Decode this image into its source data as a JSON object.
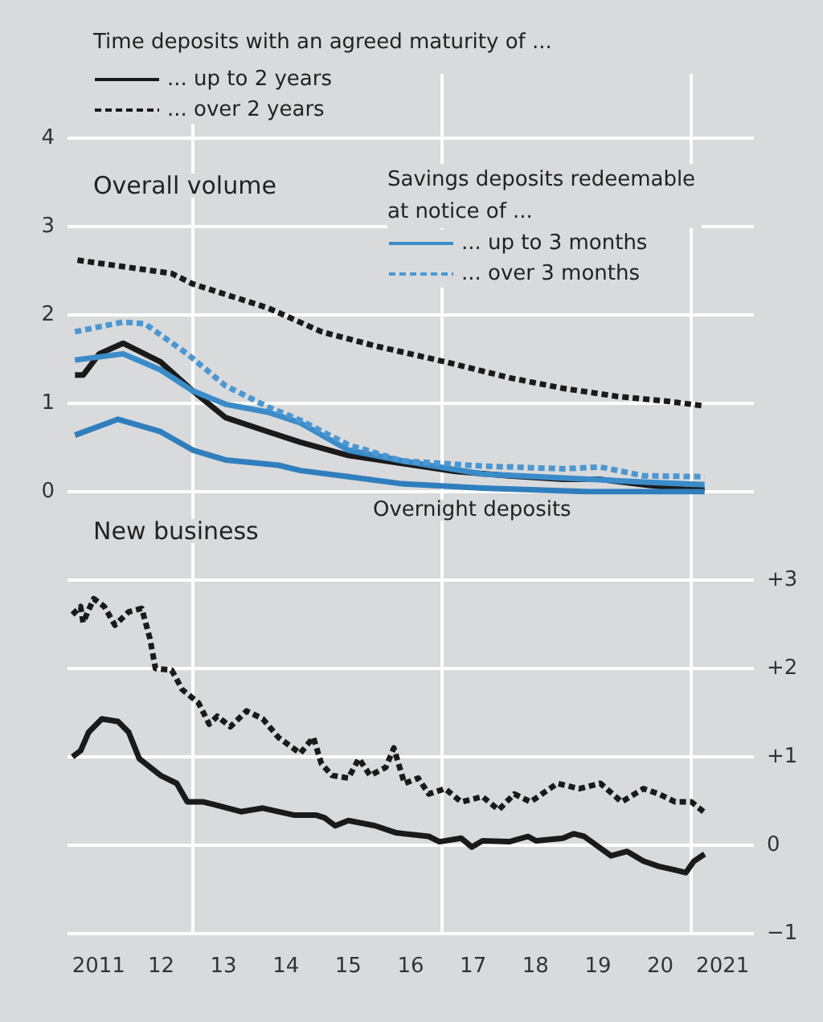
{
  "chart_data": [
    {
      "type": "line",
      "title": "Overall volume",
      "legend_title": "Time deposits with an agreed maturity of ...",
      "annotations": [
        "Savings deposits redeemable at notice of ..."
      ],
      "legend": "top",
      "grid": true,
      "tick_labels": "y",
      "xlim": [
        2010.5,
        2021.5
      ],
      "xticks": [
        {
          "value": 2012.5,
          "label": null
        },
        {
          "value": 2016.5,
          "label": null
        },
        {
          "value": 2020.5,
          "label": null
        }
      ],
      "ylim": [
        0,
        4
      ],
      "yticks": [
        0,
        1,
        2,
        3,
        4
      ],
      "series": [
        {
          "name": "... up to 2 years",
          "color": "#1a1a1a",
          "line_style": "solid",
          "x": [
            2010.62,
            2010.75,
            2011.01,
            2011.39,
            2011.99,
            2012.51,
            2013.03,
            2013.71,
            2014.23,
            2015.0,
            2015.86,
            2016.72,
            2017.58,
            2018.44,
            2019.04,
            2019.73,
            2020.5,
            2020.71
          ],
          "values": [
            1.32,
            1.32,
            1.56,
            1.68,
            1.47,
            1.14,
            0.84,
            0.68,
            0.56,
            0.41,
            0.32,
            0.23,
            0.18,
            0.14,
            0.14,
            0.08,
            0.02,
            0.04
          ]
        },
        {
          "name": "... over 2 years",
          "color": "#1a1a1a",
          "line_style": "dashed",
          "x": [
            2010.66,
            2012.17,
            2012.51,
            2013.71,
            2014.57,
            2015.43,
            2016.55,
            2017.58,
            2018.44,
            2019.3,
            2020.16,
            2020.71
          ],
          "values": [
            2.62,
            2.47,
            2.35,
            2.08,
            1.81,
            1.65,
            1.47,
            1.29,
            1.17,
            1.08,
            1.02,
            0.97
          ]
        },
        {
          "name": "... up to 3 months",
          "color": "#3a8cc8",
          "line_style": "solid",
          "x": [
            2010.62,
            2011.39,
            2011.99,
            2012.51,
            2013.03,
            2013.71,
            2014.23,
            2015.0,
            2015.86,
            2017.15,
            2018.87,
            2019.73,
            2020.71
          ],
          "values": [
            1.49,
            1.56,
            1.38,
            1.14,
            0.99,
            0.9,
            0.78,
            0.47,
            0.35,
            0.2,
            0.14,
            0.11,
            0.08
          ]
        },
        {
          "name": "... over 3 months",
          "color": "#4b97d2",
          "line_style": "dashed",
          "x": [
            2010.62,
            2011.39,
            2011.74,
            2012.42,
            2013.03,
            2013.71,
            2014.23,
            2015.0,
            2015.86,
            2017.15,
            2018.44,
            2019.04,
            2019.73,
            2020.71
          ],
          "values": [
            1.81,
            1.92,
            1.9,
            1.56,
            1.2,
            0.96,
            0.81,
            0.53,
            0.35,
            0.29,
            0.26,
            0.28,
            0.18,
            0.17
          ]
        },
        {
          "name": "Overnight deposits",
          "color": "#2f7fbe",
          "line_style": "solid",
          "x": [
            2010.62,
            2011.31,
            2011.99,
            2012.51,
            2013.03,
            2013.88,
            2014.23,
            2015.0,
            2015.86,
            2017.15,
            2018.87,
            2020.71
          ],
          "values": [
            0.64,
            0.82,
            0.68,
            0.47,
            0.36,
            0.3,
            0.24,
            0.17,
            0.09,
            0.04,
            0.0,
            0.0
          ]
        }
      ]
    },
    {
      "type": "line",
      "title": "New business",
      "grid": "y",
      "xlim": [
        2010.5,
        2021.5
      ],
      "xticks": [
        2011,
        {
          "value": 2012,
          "label": "12"
        },
        {
          "value": 2013,
          "label": "13"
        },
        {
          "value": 2014,
          "label": "14"
        },
        {
          "value": 2015,
          "label": "15"
        },
        {
          "value": 2016,
          "label": "16"
        },
        {
          "value": 2017,
          "label": "17"
        },
        {
          "value": 2018,
          "label": "18"
        },
        {
          "value": 2019,
          "label": "19"
        },
        {
          "value": 2020,
          "label": "20"
        },
        2021
      ],
      "ylim": [
        -1,
        3
      ],
      "yticks": [
        {
          "value": -1,
          "label": "−1"
        },
        0,
        {
          "value": 1,
          "label": "+1"
        },
        {
          "value": 2,
          "label": "+2"
        },
        {
          "value": 3,
          "label": "+3"
        }
      ],
      "series": [
        {
          "color": "#1a1a1a",
          "line_style": "solid",
          "x": [
            2010.58,
            2010.71,
            2010.84,
            2011.05,
            2011.31,
            2011.48,
            2011.65,
            2011.99,
            2012.25,
            2012.42,
            2012.68,
            2012.85,
            2013.28,
            2013.63,
            2014.14,
            2014.49,
            2014.62,
            2014.79,
            2015.0,
            2015.43,
            2015.77,
            2016.29,
            2016.46,
            2016.81,
            2016.98,
            2017.15,
            2017.58,
            2017.88,
            2018.01,
            2018.44,
            2018.61,
            2018.78,
            2019.21,
            2019.47,
            2019.73,
            2019.98,
            2020.24,
            2020.41,
            2020.54,
            2020.71
          ],
          "values": [
            1.0,
            1.07,
            1.28,
            1.43,
            1.4,
            1.28,
            0.98,
            0.79,
            0.7,
            0.49,
            0.49,
            0.46,
            0.38,
            0.42,
            0.34,
            0.34,
            0.31,
            0.22,
            0.28,
            0.22,
            0.14,
            0.1,
            0.04,
            0.08,
            -0.02,
            0.05,
            0.04,
            0.1,
            0.05,
            0.08,
            0.13,
            0.1,
            -0.12,
            -0.07,
            -0.18,
            -0.24,
            -0.28,
            -0.31,
            -0.18,
            -0.1
          ]
        },
        {
          "color": "#1a1a1a",
          "line_style": "dashed",
          "x": [
            2010.58,
            2010.71,
            2010.75,
            2010.92,
            2011.09,
            2011.26,
            2011.48,
            2011.69,
            2011.82,
            2011.91,
            2012.17,
            2012.34,
            2012.6,
            2012.77,
            2012.9,
            2013.11,
            2013.37,
            2013.63,
            2013.88,
            2014.23,
            2014.44,
            2014.57,
            2014.74,
            2015.0,
            2015.17,
            2015.35,
            2015.6,
            2015.73,
            2015.9,
            2016.12,
            2016.29,
            2016.55,
            2016.81,
            2017.15,
            2017.41,
            2017.66,
            2017.92,
            2018.35,
            2018.7,
            2019.04,
            2019.38,
            2019.73,
            2019.98,
            2020.24,
            2020.5,
            2020.71
          ],
          "values": [
            2.61,
            2.7,
            2.52,
            2.79,
            2.7,
            2.49,
            2.64,
            2.68,
            2.34,
            2.0,
            1.98,
            1.76,
            1.61,
            1.37,
            1.46,
            1.34,
            1.52,
            1.43,
            1.22,
            1.04,
            1.22,
            0.92,
            0.79,
            0.76,
            0.98,
            0.79,
            0.88,
            1.1,
            0.7,
            0.76,
            0.58,
            0.64,
            0.49,
            0.55,
            0.4,
            0.58,
            0.49,
            0.7,
            0.64,
            0.7,
            0.49,
            0.64,
            0.58,
            0.49,
            0.49,
            0.37
          ]
        }
      ]
    }
  ]
}
